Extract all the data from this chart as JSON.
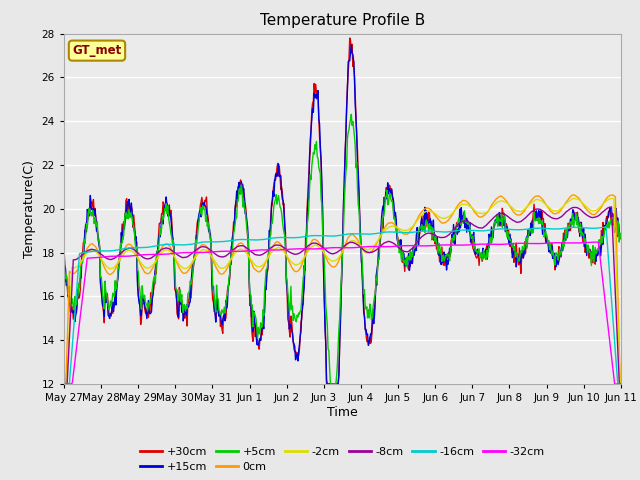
{
  "title": "Temperature Profile B",
  "xlabel": "Time",
  "ylabel": "Temperature(C)",
  "ylim": [
    12,
    28
  ],
  "yticks": [
    12,
    14,
    16,
    18,
    20,
    22,
    24,
    26,
    28
  ],
  "bg_color": "#e8e8e8",
  "plot_bg_color": "#ebebeb",
  "series": [
    {
      "label": "+30cm",
      "color": "#dd0000",
      "lw": 1.0
    },
    {
      "label": "+15cm",
      "color": "#0000dd",
      "lw": 1.0
    },
    {
      "label": "+5cm",
      "color": "#00cc00",
      "lw": 1.0
    },
    {
      "label": "0cm",
      "color": "#ff9900",
      "lw": 1.0
    },
    {
      "label": "-2cm",
      "color": "#dddd00",
      "lw": 1.0
    },
    {
      "label": "-8cm",
      "color": "#990099",
      "lw": 1.0
    },
    {
      "label": "-16cm",
      "color": "#00cccc",
      "lw": 1.0
    },
    {
      "label": "-32cm",
      "color": "#ff00ff",
      "lw": 1.0
    }
  ],
  "xtick_labels": [
    "May 27",
    "May 28",
    "May 29",
    "May 30",
    "May 31",
    "Jun 1",
    "Jun 2",
    "Jun 3",
    "Jun 4",
    "Jun 5",
    "Jun 6",
    "Jun 7",
    "Jun 8",
    "Jun 9",
    "Jun 10",
    "Jun 11"
  ],
  "legend_label": "GT_met",
  "legend_bg": "#ffff99",
  "legend_edge": "#aa8800"
}
